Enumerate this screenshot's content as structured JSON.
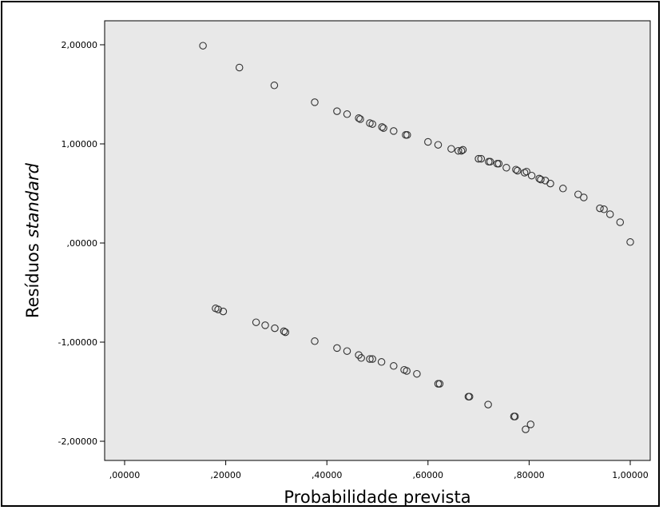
{
  "chart_data": {
    "type": "scatter",
    "xlabel": "Probabilidade prevista",
    "ylabel_main": "Resíduos ",
    "ylabel_italic": "standard",
    "xlim": [
      0,
      1
    ],
    "ylim": [
      -2.2,
      2.1
    ],
    "x_ticks": [
      {
        "value": 0.0,
        "label": ",00000"
      },
      {
        "value": 0.2,
        "label": ",20000"
      },
      {
        "value": 0.4,
        "label": ",40000"
      },
      {
        "value": 0.6,
        "label": ",60000"
      },
      {
        "value": 0.8,
        "label": ",80000"
      },
      {
        "value": 1.0,
        "label": "1,00000"
      }
    ],
    "y_ticks": [
      {
        "value": 2.0,
        "label": "2,00000"
      },
      {
        "value": 1.0,
        "label": "1,00000"
      },
      {
        "value": 0.0,
        "label": ",00000"
      },
      {
        "value": -1.0,
        "label": "-1,00000"
      },
      {
        "value": -2.0,
        "label": "-2,00000"
      }
    ],
    "grid": false,
    "plot_background": "#e8e8e8",
    "marker_color": "#333333",
    "points": [
      [
        0.155,
        1.99
      ],
      [
        0.227,
        1.77
      ],
      [
        0.296,
        1.59
      ],
      [
        0.376,
        1.42
      ],
      [
        0.42,
        1.33
      ],
      [
        0.44,
        1.3
      ],
      [
        0.463,
        1.26
      ],
      [
        0.466,
        1.25
      ],
      [
        0.485,
        1.21
      ],
      [
        0.49,
        1.2
      ],
      [
        0.509,
        1.17
      ],
      [
        0.512,
        1.16
      ],
      [
        0.532,
        1.13
      ],
      [
        0.556,
        1.09
      ],
      [
        0.559,
        1.09
      ],
      [
        0.6,
        1.02
      ],
      [
        0.62,
        0.99
      ],
      [
        0.646,
        0.95
      ],
      [
        0.66,
        0.93
      ],
      [
        0.666,
        0.93
      ],
      [
        0.669,
        0.94
      ],
      [
        0.7,
        0.85
      ],
      [
        0.705,
        0.85
      ],
      [
        0.72,
        0.82
      ],
      [
        0.723,
        0.82
      ],
      [
        0.737,
        0.8
      ],
      [
        0.74,
        0.8
      ],
      [
        0.755,
        0.76
      ],
      [
        0.774,
        0.74
      ],
      [
        0.777,
        0.73
      ],
      [
        0.791,
        0.71
      ],
      [
        0.795,
        0.72
      ],
      [
        0.805,
        0.68
      ],
      [
        0.82,
        0.65
      ],
      [
        0.823,
        0.64
      ],
      [
        0.832,
        0.63
      ],
      [
        0.842,
        0.6
      ],
      [
        0.867,
        0.55
      ],
      [
        0.897,
        0.49
      ],
      [
        0.908,
        0.46
      ],
      [
        0.94,
        0.35
      ],
      [
        0.948,
        0.34
      ],
      [
        0.96,
        0.29
      ],
      [
        0.98,
        0.21
      ],
      [
        1.0,
        0.01
      ],
      [
        0.18,
        -0.66
      ],
      [
        0.185,
        -0.67
      ],
      [
        0.195,
        -0.69
      ],
      [
        0.26,
        -0.8
      ],
      [
        0.278,
        -0.83
      ],
      [
        0.297,
        -0.86
      ],
      [
        0.315,
        -0.89
      ],
      [
        0.318,
        -0.9
      ],
      [
        0.376,
        -0.99
      ],
      [
        0.42,
        -1.06
      ],
      [
        0.44,
        -1.09
      ],
      [
        0.463,
        -1.13
      ],
      [
        0.468,
        -1.16
      ],
      [
        0.485,
        -1.17
      ],
      [
        0.49,
        -1.17
      ],
      [
        0.508,
        -1.2
      ],
      [
        0.532,
        -1.24
      ],
      [
        0.553,
        -1.28
      ],
      [
        0.558,
        -1.29
      ],
      [
        0.578,
        -1.32
      ],
      [
        0.62,
        -1.42
      ],
      [
        0.623,
        -1.42
      ],
      [
        0.68,
        -1.55
      ],
      [
        0.682,
        -1.55
      ],
      [
        0.719,
        -1.63
      ],
      [
        0.77,
        -1.75
      ],
      [
        0.772,
        -1.75
      ],
      [
        0.793,
        -1.88
      ],
      [
        0.803,
        -1.83
      ]
    ]
  }
}
